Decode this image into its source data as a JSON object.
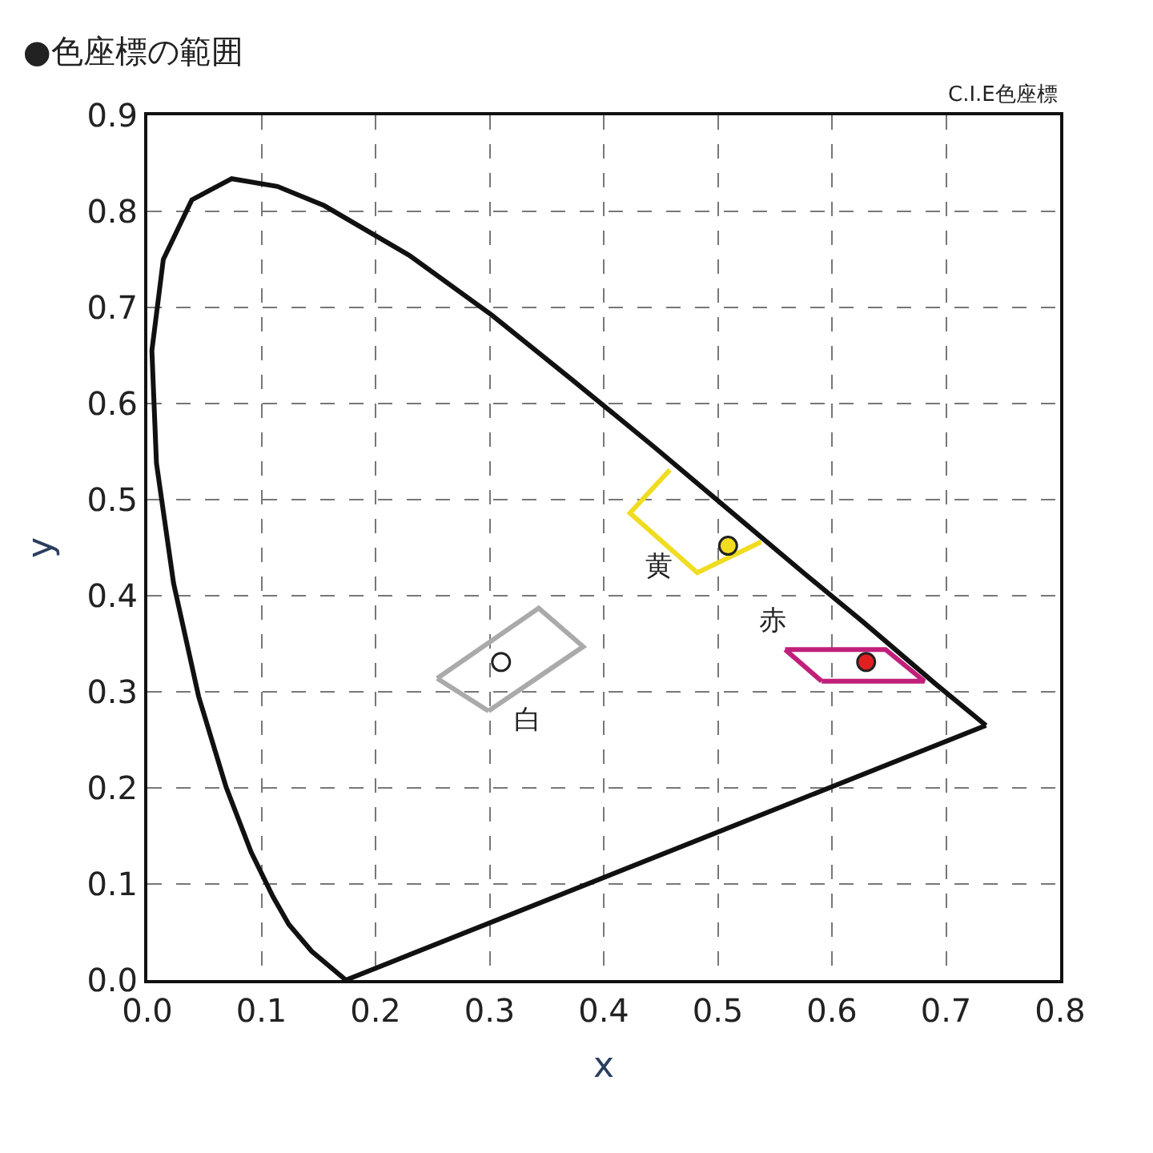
{
  "chart_data": {
    "type": "line",
    "title": "●色座標の範囲",
    "xlabel": "x",
    "ylabel": "y",
    "xlim": [
      0,
      0.8
    ],
    "ylim": [
      0,
      0.9
    ],
    "xticks": [
      {
        "value": 0,
        "label": "0.0"
      },
      0.1,
      0.2,
      0.3,
      0.4,
      0.5,
      0.6,
      0.7,
      0.8
    ],
    "yticks": [
      {
        "value": 0,
        "label": "0.0"
      },
      0.1,
      0.2,
      0.3,
      0.4,
      0.5,
      0.6,
      0.7,
      0.8,
      0.9
    ],
    "grid": true,
    "legend": false,
    "line_style": "solid",
    "series": [
      {
        "color": "#111111",
        "x": [
          0.174,
          0.144,
          0.124,
          0.11,
          0.091,
          0.069,
          0.045,
          0.023,
          0.008,
          0.004,
          0.014,
          0.039,
          0.074,
          0.114,
          0.155,
          0.23,
          0.302,
          0.373,
          0.444,
          0.512,
          0.575,
          0.627,
          0.691,
          0.735
        ],
        "values": [
          0.0,
          0.03,
          0.058,
          0.087,
          0.133,
          0.201,
          0.295,
          0.413,
          0.538,
          0.655,
          0.75,
          0.812,
          0.834,
          0.826,
          0.806,
          0.754,
          0.692,
          0.624,
          0.555,
          0.487,
          0.424,
          0.373,
          0.308,
          0.265
        ]
      },
      {
        "color": "#111111",
        "x": [
          0.735,
          0.174
        ],
        "values": [
          0.265,
          0.0
        ]
      },
      {
        "name": "白",
        "color": "#aaaaaa",
        "x": [
          0.254,
          0.343,
          0.382,
          0.299
        ],
        "values": [
          0.314,
          0.387,
          0.347,
          0.28
        ]
      },
      {
        "color": "#aaaaaa",
        "x": [
          0.299,
          0.254
        ],
        "values": [
          0.28,
          0.314
        ]
      },
      {
        "name": "黄",
        "color": "#f0dc20",
        "x": [
          0.458,
          0.423,
          0.482,
          0.538
        ],
        "values": [
          0.531,
          0.486,
          0.424,
          0.456
        ]
      },
      {
        "name": "赤",
        "color": "#c0207a",
        "x": [
          0.559,
          0.647,
          0.681,
          0.591
        ],
        "values": [
          0.344,
          0.344,
          0.311,
          0.311
        ]
      },
      {
        "color": "#c0207a",
        "x": [
          0.591,
          0.559
        ],
        "values": [
          0.311,
          0.344
        ]
      },
      {
        "type": "scatter",
        "marker": "circle",
        "color": "#ffffff",
        "x": [
          0.31
        ],
        "values": [
          0.331
        ]
      },
      {
        "type": "scatter",
        "marker": "circle",
        "color": "#f0dc20",
        "x": [
          0.509
        ],
        "values": [
          0.452
        ]
      },
      {
        "type": "scatter",
        "marker": "circle",
        "color": "#e02020",
        "x": [
          0.63
        ],
        "values": [
          0.331
        ]
      }
    ],
    "annotations": [
      "C.I.E色座標"
    ]
  }
}
